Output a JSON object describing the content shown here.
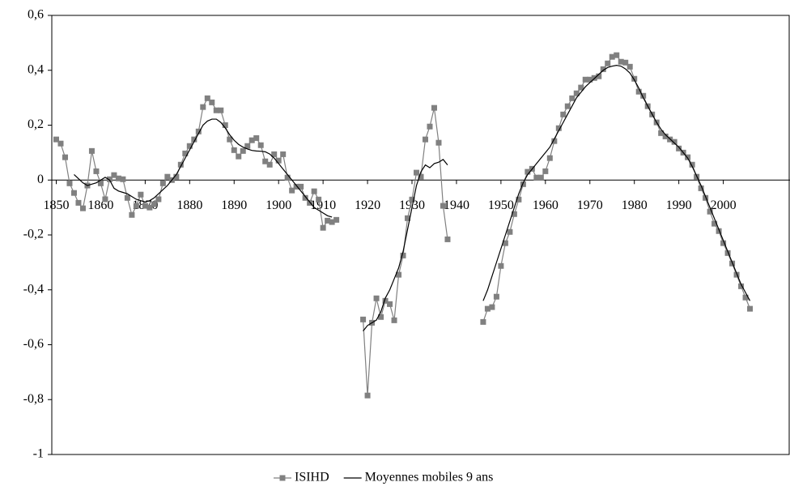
{
  "chart_data": {
    "type": "line",
    "x": [
      1850,
      1851,
      1852,
      1853,
      1854,
      1855,
      1856,
      1857,
      1858,
      1859,
      1860,
      1861,
      1862,
      1863,
      1864,
      1865,
      1866,
      1867,
      1868,
      1869,
      1870,
      1871,
      1872,
      1873,
      1874,
      1875,
      1876,
      1877,
      1878,
      1879,
      1880,
      1881,
      1882,
      1883,
      1884,
      1885,
      1886,
      1887,
      1888,
      1889,
      1890,
      1891,
      1892,
      1893,
      1894,
      1895,
      1896,
      1897,
      1898,
      1899,
      1900,
      1901,
      1902,
      1903,
      1904,
      1905,
      1906,
      1907,
      1908,
      1909,
      1910,
      1911,
      1912,
      1913,
      1914,
      1915,
      1916,
      1917,
      1918,
      1919,
      1920,
      1921,
      1922,
      1923,
      1924,
      1925,
      1926,
      1927,
      1928,
      1929,
      1930,
      1931,
      1932,
      1933,
      1934,
      1935,
      1936,
      1937,
      1938,
      1939,
      1940,
      1941,
      1942,
      1943,
      1944,
      1945,
      1946,
      1947,
      1948,
      1949,
      1950,
      1951,
      1952,
      1953,
      1954,
      1955,
      1956,
      1957,
      1958,
      1959,
      1960,
      1961,
      1962,
      1963,
      1964,
      1965,
      1966,
      1967,
      1968,
      1969,
      1970,
      1971,
      1972,
      1973,
      1974,
      1975,
      1976,
      1977,
      1978,
      1979,
      1980,
      1981,
      1982,
      1983,
      1984,
      1985,
      1986,
      1987,
      1988,
      1989,
      1990,
      1991,
      1992,
      1993,
      1994,
      1995,
      1996,
      1997,
      1998,
      1999,
      2000,
      2001,
      2002,
      2003,
      2004,
      2005,
      2006
    ],
    "series": [
      {
        "name": "ISIHD",
        "color": "#808080",
        "marker": "square",
        "values": [
          0.148,
          0.133,
          0.083,
          -0.012,
          -0.047,
          -0.083,
          -0.103,
          -0.02,
          0.106,
          0.032,
          -0.012,
          -0.07,
          0.003,
          0.018,
          0.006,
          0.003,
          -0.065,
          -0.127,
          -0.094,
          -0.053,
          -0.094,
          -0.1,
          -0.088,
          -0.07,
          -0.012,
          0.012,
          0,
          0.012,
          0.056,
          0.097,
          0.124,
          0.148,
          0.177,
          0.266,
          0.298,
          0.283,
          0.254,
          0.254,
          0.2,
          0.148,
          0.109,
          0.086,
          0.106,
          0.124,
          0.145,
          0.153,
          0.127,
          0.068,
          0.056,
          0.094,
          0.071,
          0.094,
          0.009,
          -0.038,
          -0.024,
          -0.024,
          -0.065,
          -0.083,
          -0.041,
          -0.071,
          -0.174,
          -0.148,
          -0.153,
          -0.145,
          null,
          null,
          null,
          null,
          null,
          -0.508,
          -0.785,
          -0.52,
          -0.431,
          -0.499,
          -0.44,
          -0.452,
          -0.511,
          -0.345,
          -0.275,
          -0.139,
          -0.071,
          0.027,
          0.012,
          0.148,
          0.195,
          0.263,
          0.136,
          -0.094,
          -0.216,
          null,
          null,
          null,
          null,
          null,
          null,
          null,
          -0.517,
          -0.469,
          -0.463,
          -0.425,
          -0.313,
          -0.23,
          -0.189,
          -0.124,
          -0.071,
          -0.015,
          0.03,
          0.041,
          0.009,
          0.009,
          0.032,
          0.08,
          0.142,
          0.189,
          0.239,
          0.269,
          0.298,
          0.316,
          0.337,
          0.366,
          0.366,
          0.372,
          0.378,
          0.404,
          0.425,
          0.449,
          0.455,
          0.431,
          0.428,
          0.413,
          0.369,
          0.322,
          0.307,
          0.269,
          0.239,
          0.21,
          0.171,
          0.159,
          0.148,
          0.139,
          0.115,
          0.1,
          0.083,
          0.056,
          0.012,
          -0.03,
          -0.065,
          -0.115,
          -0.159,
          -0.186,
          -0.23,
          -0.266,
          -0.304,
          -0.345,
          -0.387,
          -0.428,
          -0.469
        ]
      },
      {
        "name": "Moyennes mobiles 9 ans",
        "color": "#000000",
        "values": [
          null,
          null,
          null,
          null,
          0.02,
          0.005,
          -0.01,
          -0.02,
          -0.015,
          -0.01,
          0,
          0.01,
          0,
          -0.03,
          -0.04,
          -0.045,
          -0.05,
          -0.06,
          -0.07,
          -0.075,
          -0.08,
          -0.075,
          -0.065,
          -0.05,
          -0.035,
          -0.02,
          0,
          0.02,
          0.05,
          0.08,
          0.11,
          0.14,
          0.17,
          0.2,
          0.215,
          0.222,
          0.222,
          0.21,
          0.19,
          0.165,
          0.145,
          0.13,
          0.12,
          0.113,
          0.108,
          0.106,
          0.105,
          0.103,
          0.095,
          0.08,
          0.06,
          0.04,
          0.02,
          0,
          -0.02,
          -0.04,
          -0.06,
          -0.08,
          -0.1,
          -0.11,
          -0.12,
          -0.13,
          -0.135,
          null,
          null,
          null,
          null,
          null,
          null,
          -0.55,
          -0.53,
          -0.52,
          -0.51,
          -0.48,
          -0.43,
          -0.4,
          -0.36,
          -0.32,
          -0.26,
          -0.18,
          -0.1,
          -0.02,
          0.03,
          0.055,
          0.045,
          0.06,
          0.065,
          0.075,
          0.055,
          null,
          null,
          null,
          null,
          null,
          null,
          null,
          -0.44,
          -0.4,
          -0.35,
          -0.3,
          -0.25,
          -0.2,
          -0.15,
          -0.1,
          -0.05,
          -0.01,
          0.02,
          0.04,
          0.06,
          0.08,
          0.1,
          0.12,
          0.15,
          0.18,
          0.21,
          0.24,
          0.27,
          0.3,
          0.32,
          0.34,
          0.355,
          0.37,
          0.385,
          0.4,
          0.41,
          0.415,
          0.418,
          0.415,
          0.405,
          0.39,
          0.365,
          0.335,
          0.3,
          0.27,
          0.24,
          0.21,
          0.185,
          0.165,
          0.15,
          0.135,
          0.12,
          0.1,
          0.08,
          0.05,
          0.015,
          -0.02,
          -0.06,
          -0.1,
          -0.14,
          -0.18,
          -0.22,
          -0.26,
          -0.3,
          -0.34,
          -0.38,
          -0.41,
          -0.44
        ]
      }
    ],
    "xlim": [
      1849,
      2015
    ],
    "xticks": [
      1850,
      1860,
      1870,
      1880,
      1890,
      1900,
      1910,
      1920,
      1930,
      1940,
      1950,
      1960,
      1970,
      1980,
      1990,
      2000
    ],
    "ylim": [
      -1,
      0.6
    ],
    "yticks": [
      {
        "value": 0.6,
        "label": "0,6"
      },
      {
        "value": 0.4,
        "label": "0,4"
      },
      {
        "value": 0.2,
        "label": "0,2"
      },
      0,
      {
        "value": -0.2,
        "label": "-0,2"
      },
      {
        "value": -0.4,
        "label": "-0,4"
      },
      {
        "value": -0.6,
        "label": "-0,6"
      },
      {
        "value": -0.8,
        "label": "-0,8"
      },
      -1
    ],
    "legend": "bottom"
  }
}
